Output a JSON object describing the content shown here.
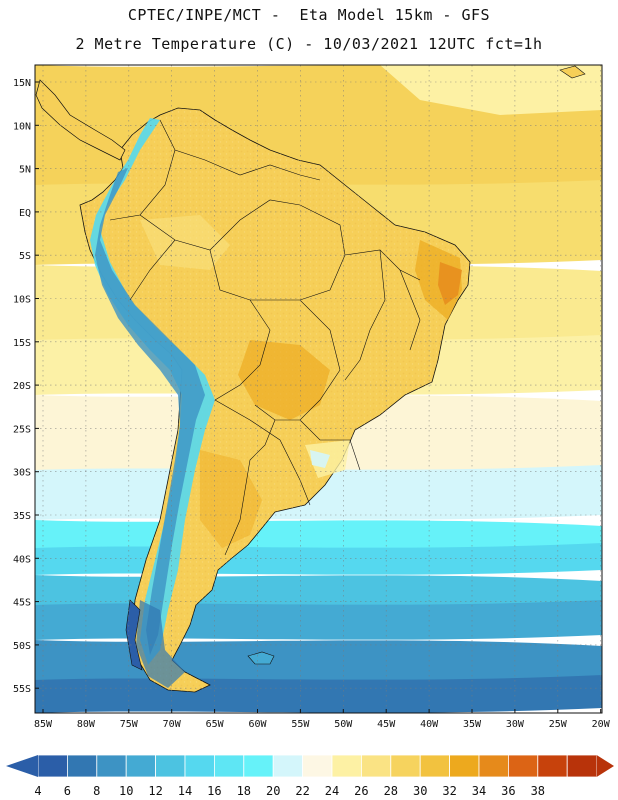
{
  "header": {
    "line1": "CPTEC/INPE/MCT -  Eta Model 15km - GFS",
    "line2": "2 Metre Temperature (C) - 10/03/2021 12UTC fct=1h"
  },
  "map": {
    "region": "South America",
    "lat_labels": [
      "15N",
      "10N",
      "5N",
      "EQ",
      "5S",
      "10S",
      "15S",
      "20S",
      "25S",
      "30S",
      "35S",
      "40S",
      "45S",
      "50S",
      "55S"
    ],
    "lon_labels": [
      "85W",
      "80W",
      "75W",
      "70W",
      "65W",
      "60W",
      "55W",
      "50W",
      "45W",
      "40W",
      "35W",
      "30W",
      "25W",
      "20W"
    ],
    "ocean_bands": [
      {
        "value": 27,
        "color": "#f5d25a"
      },
      {
        "value": 26,
        "color": "#f7dd6e"
      },
      {
        "value": 24,
        "color": "#faea90"
      },
      {
        "value": 23,
        "color": "#fcf1a6"
      },
      {
        "value": 22,
        "color": "#fdf5d6"
      },
      {
        "value": 19,
        "color": "#d4f6fb"
      },
      {
        "value": 17,
        "color": "#66f2f9"
      },
      {
        "value": 15,
        "color": "#55d8ef"
      },
      {
        "value": 13,
        "color": "#4cc3e1"
      },
      {
        "value": 11,
        "color": "#44aad3"
      },
      {
        "value": 9,
        "color": "#3d93c4"
      },
      {
        "value": 7,
        "color": "#3277b2"
      }
    ]
  },
  "colorbar": {
    "values": [
      "4",
      "6",
      "8",
      "10",
      "12",
      "14",
      "16",
      "18",
      "20",
      "22",
      "24",
      "26",
      "28",
      "30",
      "32",
      "34",
      "36",
      "38"
    ],
    "colors": [
      "#2b5ea8",
      "#3277b2",
      "#3d93c4",
      "#44aad3",
      "#4cc3e1",
      "#55d8ef",
      "#5ee6f4",
      "#66f2f9",
      "#d4f6fb",
      "#fdf7e4",
      "#fdf1a4",
      "#fae384",
      "#f6d35e",
      "#f2c23f",
      "#eda91e",
      "#e68a1b",
      "#dc6415",
      "#c7420c",
      "#b8330a"
    ],
    "low_arrow_color": "#2b5ea8",
    "high_arrow_color": "#b8330a"
  }
}
